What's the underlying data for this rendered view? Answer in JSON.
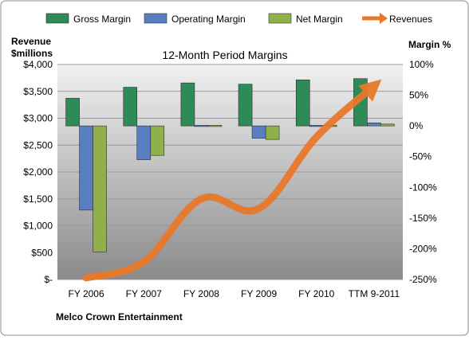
{
  "chart_data": {
    "type": "bar",
    "title": "12-Month Period Margins",
    "left_axis_label_line1": "Revenue",
    "left_axis_label_line2": "$millions",
    "right_axis_label": "Margin %",
    "footer": "Melco Crown Entertainment",
    "categories": [
      "FY 2006",
      "FY 2007",
      "FY 2008",
      "FY 2009",
      "FY 2010",
      "TTM 9-2011"
    ],
    "left_ylim": [
      0,
      4000
    ],
    "left_ticks": [
      "$-",
      "$500",
      "$1,000",
      "$1,500",
      "$2,000",
      "$2,500",
      "$3,000",
      "$3,500",
      "$4,000"
    ],
    "right_ylim": [
      -250,
      100
    ],
    "right_ticks": [
      "-250%",
      "-200%",
      "-150%",
      "-100%",
      "-50%",
      "0%",
      "50%",
      "100%"
    ],
    "legend_position": "top",
    "series": [
      {
        "name": "Gross Margin",
        "kind": "bar",
        "axis": "right",
        "color": "#2e8b57",
        "values": [
          45,
          63,
          70,
          68,
          75,
          77
        ]
      },
      {
        "name": "Operating Margin",
        "kind": "bar",
        "axis": "right",
        "color": "#5a7fc0",
        "values": [
          -137,
          -55,
          0,
          -20,
          0,
          5
        ]
      },
      {
        "name": "Net Margin",
        "kind": "bar",
        "axis": "right",
        "color": "#8fb04a",
        "values": [
          -205,
          -48,
          -1,
          -22,
          -1,
          3
        ]
      },
      {
        "name": "Revenues",
        "kind": "line",
        "axis": "left",
        "color": "#e8792a",
        "values": [
          30,
          330,
          1500,
          1320,
          2650,
          3600
        ]
      }
    ]
  }
}
